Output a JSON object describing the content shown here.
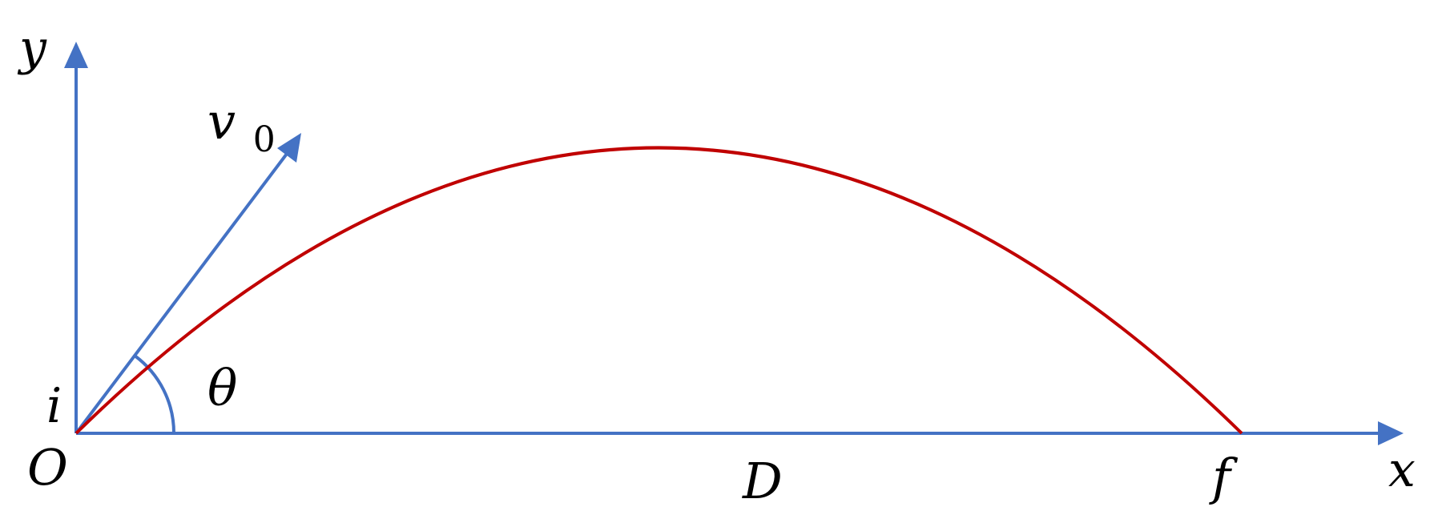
{
  "labels": {
    "y_axis": "y",
    "x_axis": "x",
    "velocity": "v",
    "velocity_subscript": "0",
    "angle": "θ",
    "initial_point": "i",
    "origin": "O",
    "range": "D",
    "final_point": "f"
  },
  "colors": {
    "axes": "#4472C4",
    "trajectory": "#C00000",
    "text": "#000000"
  },
  "icons": {
    "axis_arrowheads": "triangle-arrowhead",
    "velocity_arrowhead": "triangle-arrowhead"
  }
}
